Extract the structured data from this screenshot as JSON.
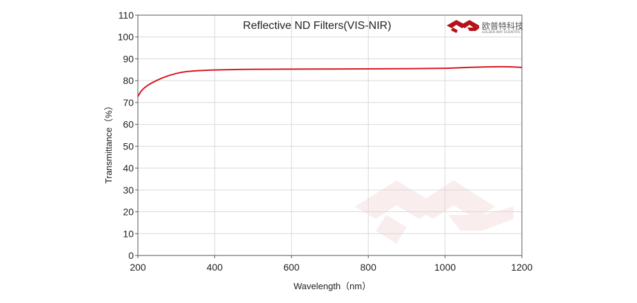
{
  "chart_data": {
    "type": "line",
    "title": "Reflective ND Filters(VIS-NIR)",
    "xlabel": "Wavelength（nm）",
    "ylabel": "Transmittance（%）",
    "xlim": [
      200,
      1200
    ],
    "ylim": [
      0,
      110
    ],
    "xticks": [
      200,
      400,
      600,
      800,
      1000,
      1200
    ],
    "yticks": [
      0,
      10,
      20,
      30,
      40,
      50,
      60,
      70,
      80,
      90,
      100,
      110
    ],
    "grid": true,
    "series": [
      {
        "color": "#d7161f",
        "x": [
          200,
          210,
          225,
          250,
          275,
          300,
          320,
          350,
          400,
          450,
          500,
          600,
          700,
          800,
          900,
          1000,
          1050,
          1100,
          1150,
          1180,
          1200
        ],
        "y": [
          72.8,
          75.5,
          77.8,
          80.2,
          82.0,
          83.3,
          84.0,
          84.5,
          84.9,
          85.1,
          85.2,
          85.3,
          85.35,
          85.4,
          85.5,
          85.7,
          86.0,
          86.3,
          86.4,
          86.3,
          86.1
        ]
      }
    ]
  },
  "logo": {
    "brand_cn": "欧普特科技",
    "brand_en": "GOLDEN WAY SCIENTIFIC",
    "color": "#b5121b"
  }
}
